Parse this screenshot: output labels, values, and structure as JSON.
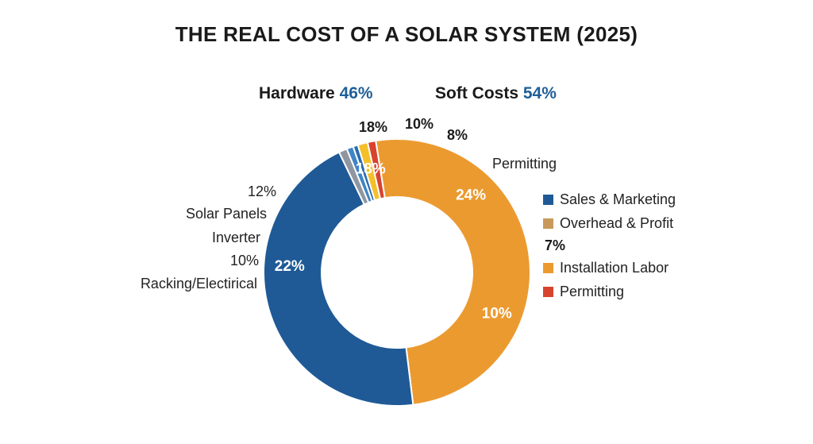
{
  "chart_data": {
    "type": "pie",
    "title": "THE REAL COST OF A SOLAR SYSTEM (2025)",
    "groups": [
      {
        "name": "Hardware",
        "value_label": "46%"
      },
      {
        "name": "Soft Costs",
        "value_label": "54%"
      }
    ],
    "slices": [
      {
        "value": 44.8,
        "color": "#1f5a96"
      },
      {
        "value": 1.0,
        "color": "#8f96a0"
      },
      {
        "value": 0.8,
        "color": "#3f86c4"
      },
      {
        "value": 0.6,
        "color": "#2c6cb0"
      },
      {
        "value": 1.2,
        "color": "#f4c02a"
      },
      {
        "value": 1.0,
        "color": "#d8432e"
      },
      {
        "value": 50.6,
        "color": "#eb9a30"
      }
    ],
    "inner_labels": [
      {
        "text": "10%",
        "value_position": 83.0
      },
      {
        "text": "24%",
        "value_position": 64.0
      },
      {
        "text": "18%",
        "value_position": 48.0
      },
      {
        "text": "22%",
        "value_position": 28.0
      }
    ],
    "top_labels": [
      "18%",
      "10%",
      "8%"
    ],
    "side_labels": [
      "12%",
      "Solar Panels",
      "Inverter",
      "10%",
      "Racking/Electirical"
    ],
    "permitting_label": "Permitting",
    "legend": [
      {
        "label": "Sales & Marketing",
        "color": "#1f5a96"
      },
      {
        "label": "Overhead & Profit",
        "color": "#c9995c"
      },
      {
        "label": "Installation Labor",
        "color": "#eb9a30"
      },
      {
        "label": "Permitting",
        "color": "#d8432e"
      }
    ],
    "legend_note": "7%"
  }
}
